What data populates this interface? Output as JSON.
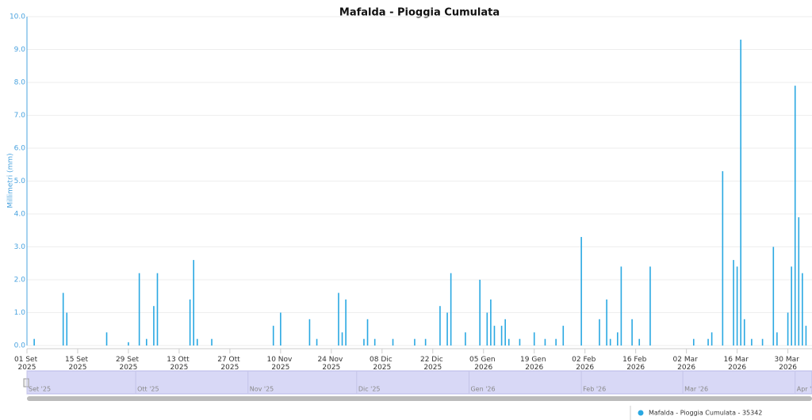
{
  "chart_data": {
    "type": "bar",
    "title": "Mafalda - Pioggia Cumulata",
    "y_label": "Millimetri (mm)",
    "x": [
      "2025-09-03",
      "2025-09-11",
      "2025-09-12",
      "2025-09-23",
      "2025-09-29",
      "2025-10-02",
      "2025-10-04",
      "2025-10-06",
      "2025-10-07",
      "2025-10-16",
      "2025-10-17",
      "2025-10-18",
      "2025-10-22",
      "2025-11-08",
      "2025-11-10",
      "2025-11-18",
      "2025-11-20",
      "2025-11-26",
      "2025-11-27",
      "2025-11-28",
      "2025-12-03",
      "2025-12-04",
      "2025-12-06",
      "2025-12-11",
      "2025-12-17",
      "2025-12-20",
      "2025-12-24",
      "2025-12-26",
      "2025-12-27",
      "2025-12-31",
      "2026-01-04",
      "2026-01-06",
      "2026-01-07",
      "2026-01-08",
      "2026-01-10",
      "2026-01-11",
      "2026-01-12",
      "2026-01-15",
      "2026-01-19",
      "2026-01-22",
      "2026-01-25",
      "2026-01-27",
      "2026-02-01",
      "2026-02-06",
      "2026-02-08",
      "2026-02-09",
      "2026-02-11",
      "2026-02-12",
      "2026-02-15",
      "2026-02-17",
      "2026-02-20",
      "2026-03-04",
      "2026-03-08",
      "2026-03-09",
      "2026-03-12",
      "2026-03-15",
      "2026-03-16",
      "2026-03-17",
      "2026-03-18",
      "2026-03-20",
      "2026-03-23",
      "2026-03-26",
      "2026-03-27",
      "2026-03-30",
      "2026-03-31",
      "2026-04-01",
      "2026-04-02",
      "2026-04-03",
      "2026-04-04"
    ],
    "series": [
      {
        "name": "Mafalda - Pioggia Cumulata - 35342",
        "color": "#2aa8e2",
        "values": [
          0.2,
          1.6,
          1.0,
          0.4,
          0.1,
          2.2,
          0.2,
          1.2,
          2.2,
          1.4,
          2.6,
          0.2,
          0.2,
          0.6,
          1.0,
          0.8,
          0.2,
          1.6,
          0.4,
          1.4,
          0.2,
          0.8,
          0.2,
          0.2,
          0.2,
          0.2,
          1.2,
          1.0,
          2.2,
          0.4,
          2.0,
          1.0,
          1.4,
          0.6,
          0.6,
          0.8,
          0.2,
          0.2,
          0.4,
          0.2,
          0.2,
          0.6,
          3.3,
          0.8,
          1.4,
          0.2,
          0.4,
          2.4,
          0.8,
          0.2,
          2.4,
          0.2,
          0.2,
          0.4,
          5.3,
          2.6,
          2.4,
          9.3,
          0.8,
          0.2,
          0.2,
          3.0,
          0.4,
          1.0,
          2.4,
          7.9,
          3.9,
          2.2,
          0.6
        ]
      }
    ],
    "xlim": [
      "2025-09-01",
      "2026-04-05"
    ],
    "xticks": [
      {
        "value": "2025-09-01",
        "label": "01 Set 2025"
      },
      {
        "value": "2025-09-15",
        "label": "15 Set 2025"
      },
      {
        "value": "2025-09-29",
        "label": "29 Set 2025"
      },
      {
        "value": "2025-10-13",
        "label": "13 Ott 2025"
      },
      {
        "value": "2025-10-27",
        "label": "27 Ott 2025"
      },
      {
        "value": "2025-11-10",
        "label": "10 Nov 2025"
      },
      {
        "value": "2025-11-24",
        "label": "24 Nov 2025"
      },
      {
        "value": "2025-12-08",
        "label": "08 Dic 2025"
      },
      {
        "value": "2025-12-22",
        "label": "22 Dic 2025"
      },
      {
        "value": "2026-01-05",
        "label": "05 Gen 2026"
      },
      {
        "value": "2026-01-19",
        "label": "19 Gen 2026"
      },
      {
        "value": "2026-02-02",
        "label": "02 Feb 2026"
      },
      {
        "value": "2026-02-16",
        "label": "16 Feb 2026"
      },
      {
        "value": "2026-03-02",
        "label": "02 Mar 2026"
      },
      {
        "value": "2026-03-16",
        "label": "16 Mar 2026"
      },
      {
        "value": "2026-03-30",
        "label": "30 Mar 2026"
      }
    ],
    "ylim": [
      0,
      10
    ],
    "yticks": [
      {
        "value": 0,
        "label": "0.0"
      },
      {
        "value": 1,
        "label": "1.0"
      },
      {
        "value": 2,
        "label": "2.0"
      },
      {
        "value": 3,
        "label": "3.0"
      },
      {
        "value": 4,
        "label": "4.0"
      },
      {
        "value": 5,
        "label": "5.0"
      },
      {
        "value": 6,
        "label": "6.0"
      },
      {
        "value": 7,
        "label": "7.0"
      },
      {
        "value": 8,
        "label": "8.0"
      },
      {
        "value": 9,
        "label": "9.0"
      },
      {
        "value": 10,
        "label": "10.0"
      }
    ],
    "grid": true,
    "navigator": {
      "xticks": [
        {
          "value": "2025-09-01",
          "label": "Set '25"
        },
        {
          "value": "2025-10-01",
          "label": "Ott '25"
        },
        {
          "value": "2025-11-01",
          "label": "Nov '25"
        },
        {
          "value": "2025-12-01",
          "label": "Dic '25"
        },
        {
          "value": "2026-01-01",
          "label": "Gen '26"
        },
        {
          "value": "2026-02-01",
          "label": "Feb '26"
        },
        {
          "value": "2026-03-01",
          "label": "Mar '26"
        },
        {
          "value": "2026-04-01",
          "label": "Apr '26"
        }
      ]
    }
  }
}
